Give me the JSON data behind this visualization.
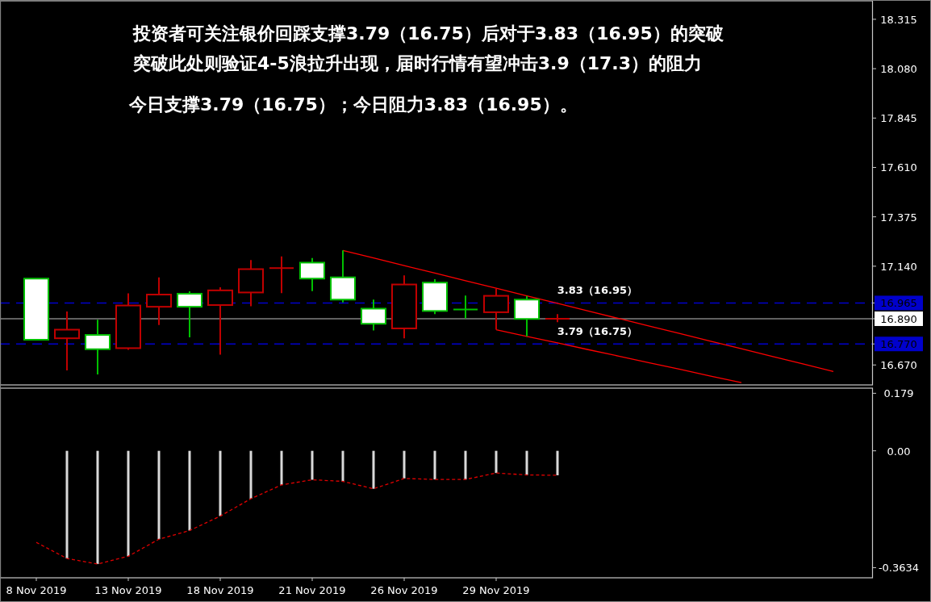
{
  "chart_data": [
    {
      "type": "candlestick",
      "title": "投资者可关注银价回踩支撑3.79（16.75）后对于3.83（16.95）的突破",
      "subtitle": "突破此处则验证4-5浪拉升出现，届时行情有望冲击3.9（17.3）的阻力",
      "annotations": [
        "今日支撑3.79（16.75）；今日阻力3.83（16.95）。"
      ],
      "ohlc": [
        [
          16.79,
          17.081,
          16.79,
          17.081
        ],
        [
          16.838,
          16.924,
          16.644,
          16.797
        ],
        [
          16.745,
          16.885,
          16.625,
          16.813
        ],
        [
          16.953,
          17.011,
          16.742,
          16.75
        ],
        [
          17.005,
          17.087,
          16.86,
          16.947
        ],
        [
          16.947,
          17.02,
          16.802,
          17.009
        ],
        [
          17.025,
          17.04,
          16.719,
          16.955
        ],
        [
          17.126,
          17.169,
          16.949,
          17.015
        ],
        [
          17.131,
          17.187,
          17.012,
          17.13
        ],
        [
          17.081,
          17.179,
          17.021,
          17.157
        ],
        [
          16.981,
          17.215,
          16.968,
          17.087
        ],
        [
          16.866,
          16.981,
          16.834,
          16.938
        ],
        [
          17.053,
          17.096,
          16.797,
          16.844
        ],
        [
          16.927,
          17.078,
          16.912,
          17.062
        ],
        [
          16.934,
          17.0,
          16.892,
          16.935
        ],
        [
          16.999,
          17.032,
          16.838,
          16.921
        ],
        [
          16.889,
          16.998,
          16.806,
          16.981
        ],
        [
          16.89,
          16.912,
          16.874,
          16.889
        ],
        null,
        null,
        null,
        null,
        null,
        null,
        null,
        null,
        null
      ],
      "colors": [
        "#00c000",
        "#c00000",
        "#00c000",
        "#c00000",
        "#c00000",
        "#00c000",
        "#c00000",
        "#c00000",
        "#c00000",
        "#00c000",
        "#00c000",
        "#00c000",
        "#c00000",
        "#00c000",
        "#00c000",
        "#c00000",
        "#00c000",
        "#c00000",
        null,
        null,
        null,
        null,
        null,
        null,
        null,
        null,
        null
      ],
      "series": [
        {
          "type": "line",
          "color": "#ff0000",
          "values": [
            null,
            null,
            null,
            null,
            null,
            null,
            null,
            null,
            null,
            null,
            17.215,
            17.179,
            17.143,
            17.107,
            17.071,
            17.035,
            16.999,
            16.963,
            16.927,
            16.891,
            16.855,
            16.819,
            16.783,
            16.747,
            16.711,
            16.675,
            16.639
          ]
        },
        {
          "type": "line",
          "color": "#ff0000",
          "values": [
            null,
            null,
            null,
            null,
            null,
            null,
            null,
            null,
            null,
            null,
            null,
            null,
            null,
            null,
            null,
            16.838,
            16.806,
            16.775,
            16.743,
            16.712,
            16.68,
            16.649,
            16.617,
            16.586,
            null,
            null,
            null
          ]
        }
      ],
      "ylim": [
        16.575,
        18.403
      ],
      "yticks": [
        18.315,
        {
          "value": 18.08,
          "label": "18.080"
        },
        17.845,
        {
          "value": 17.61,
          "label": "17.610"
        },
        17.375,
        {
          "value": 17.14,
          "label": "17.140"
        },
        16.965,
        {
          "value": 16.89,
          "label": "16.890"
        },
        {
          "value": 16.77,
          "label": "16.770"
        },
        {
          "value": 16.67,
          "label": "16.670"
        }
      ],
      "ref_lines": [
        {
          "axis": "y",
          "value": 16.965,
          "label": "3.83（16.95）",
          "color": "#0000cc",
          "line_style": "dashed"
        },
        {
          "axis": "y",
          "value": 16.89,
          "color": "#808080",
          "line_style": "solid"
        },
        {
          "axis": "y",
          "value": 16.77,
          "label": "3.79（16.75）",
          "color": "#0000cc",
          "line_style": "dashed"
        }
      ],
      "tick_labels": "y"
    },
    {
      "type": "bar",
      "categories": [
        "8 Nov 2019",
        null,
        null,
        "13 Nov 2019",
        null,
        null,
        "18 Nov 2019",
        null,
        null,
        "21 Nov 2019",
        null,
        null,
        "26 Nov 2019",
        null,
        null,
        "29 Nov 2019",
        null,
        null,
        null,
        null,
        null,
        null,
        null,
        null,
        null,
        null,
        null
      ],
      "series": [
        {
          "type": "bar",
          "color": "#d9d9d9",
          "values": [
            null,
            -0.335,
            -0.352,
            -0.328,
            -0.275,
            -0.248,
            -0.203,
            -0.149,
            -0.106,
            -0.09,
            -0.095,
            -0.118,
            -0.086,
            -0.089,
            -0.089,
            -0.069,
            -0.075,
            -0.076,
            null,
            null,
            null,
            null,
            null,
            null,
            null,
            null,
            null
          ]
        },
        {
          "type": "line",
          "color": "#e00000",
          "line_style": "dashed",
          "values": [
            -0.285,
            -0.335,
            -0.352,
            -0.328,
            -0.275,
            -0.248,
            -0.203,
            -0.149,
            -0.106,
            -0.09,
            -0.095,
            -0.118,
            -0.086,
            -0.089,
            -0.089,
            -0.069,
            -0.075,
            -0.076,
            null,
            null,
            null,
            null,
            null,
            null,
            null,
            null,
            null
          ]
        }
      ],
      "ylim": [
        -0.395,
        0.195
      ],
      "yticks": [
        0.179,
        {
          "value": 0,
          "label": "0.00"
        },
        -0.3634
      ]
    }
  ]
}
